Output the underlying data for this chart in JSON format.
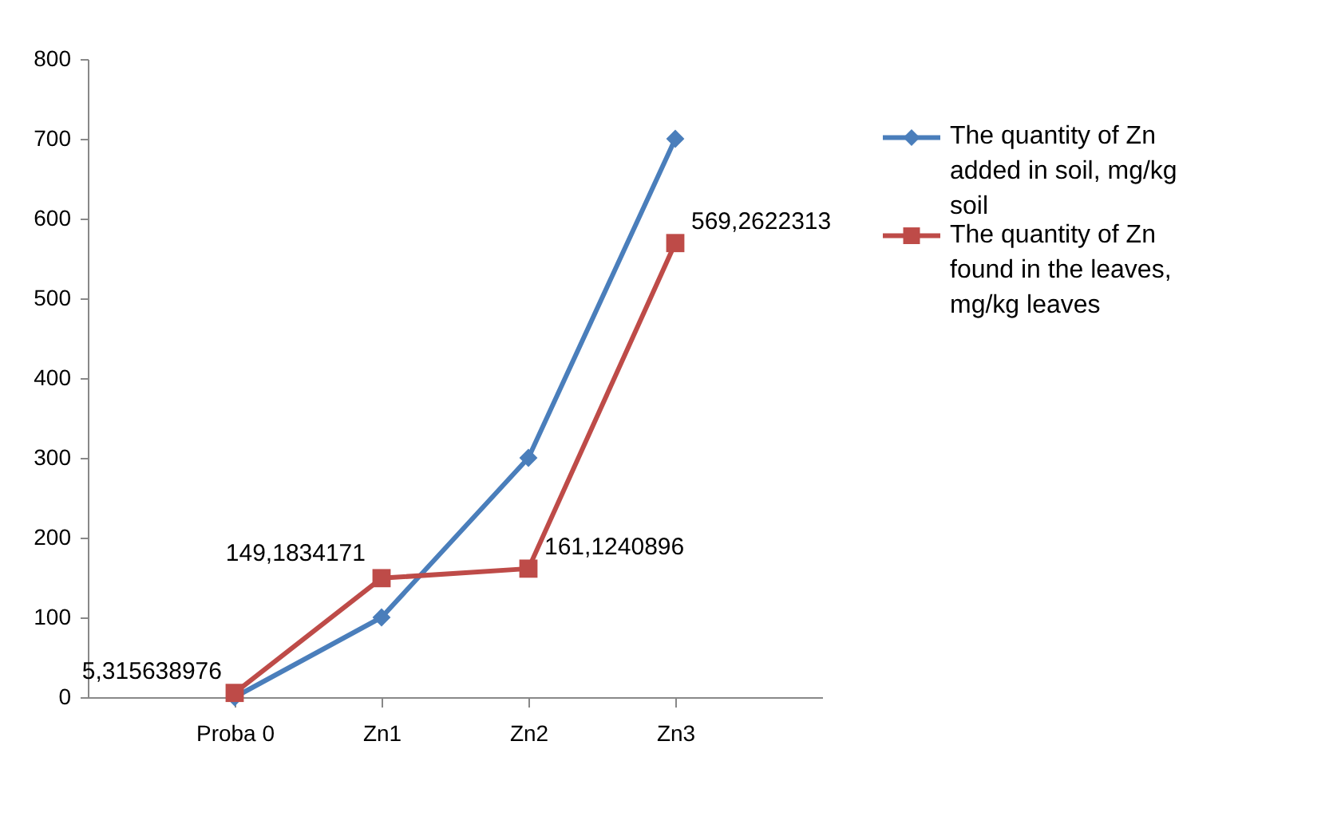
{
  "chart_data": {
    "type": "line",
    "categories": [
      "Proba 0",
      "Zn1",
      "Zn2",
      "Zn3"
    ],
    "series": [
      {
        "name": "The quantity of Zn added in soil, mg/kg soil",
        "color": "#4a7ebb",
        "marker": "diamond",
        "values": [
          0,
          100,
          300,
          700
        ]
      },
      {
        "name": "The quantity of Zn found in the leaves, mg/kg leaves",
        "color": "#be4b48",
        "marker": "square",
        "values": [
          5.315638976,
          149.1834171,
          161.1240896,
          569.2622313
        ],
        "value_labels": [
          "5,315638976",
          "149,1834171",
          "161,1240896",
          "569,2622313"
        ]
      }
    ],
    "ylim": [
      0,
      800
    ],
    "yticks": [
      0,
      100,
      200,
      300,
      400,
      500,
      600,
      700,
      800
    ],
    "grid": false,
    "legend": "right",
    "line_style": "solid"
  }
}
